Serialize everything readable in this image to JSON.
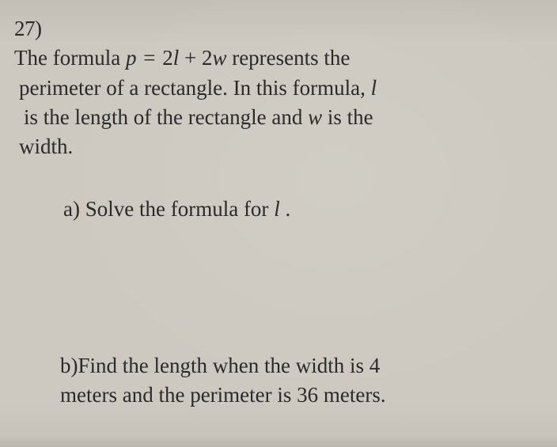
{
  "problem": {
    "number": "27)",
    "stem": {
      "line1_pre": "The formula ",
      "formula": {
        "lhs_var": "p",
        "eq": " = ",
        "term1_coef": "2",
        "term1_var": "l",
        "plus": " + ",
        "term2_coef": "2",
        "term2_var": "w"
      },
      "line1_post": " represents the",
      "line2_pre": "perimeter of a rectangle. In this formula, ",
      "line2_var": "l",
      "line3_pre": "is the length of the rectangle and ",
      "line3_var": "w",
      "line3_post": " is the",
      "line4": "width."
    },
    "part_a": {
      "label": "a) ",
      "text_pre": "Solve the formula for ",
      "var": "l",
      "text_post": "."
    },
    "part_b": {
      "label": "b)",
      "line1": "Find the length when the width is 4",
      "line2": "meters and the perimeter is 36 meters."
    }
  }
}
